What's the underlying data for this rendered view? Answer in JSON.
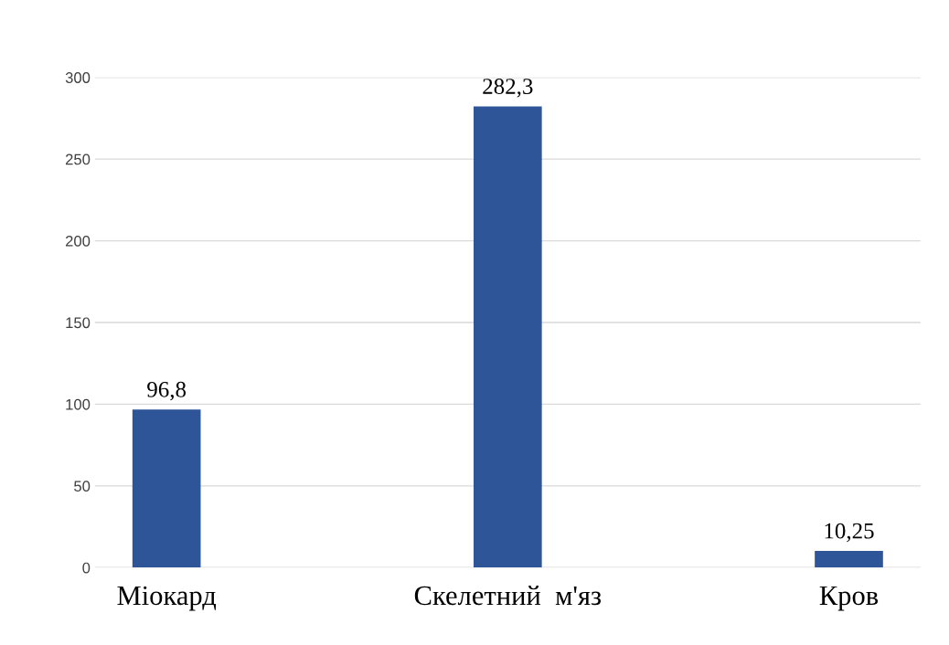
{
  "chart_data": {
    "type": "bar",
    "categories": [
      "Міокард",
      "Скелетний  м'яз",
      "Кров"
    ],
    "values": [
      96.8,
      282.3,
      10.25
    ],
    "value_labels": [
      "96,8",
      "282,3",
      "10,25"
    ],
    "color": "#2e5597",
    "ylim": [
      0,
      300
    ],
    "yticks": [
      0,
      50,
      100,
      150,
      200,
      250,
      300
    ],
    "grid": "y",
    "legend": false
  }
}
